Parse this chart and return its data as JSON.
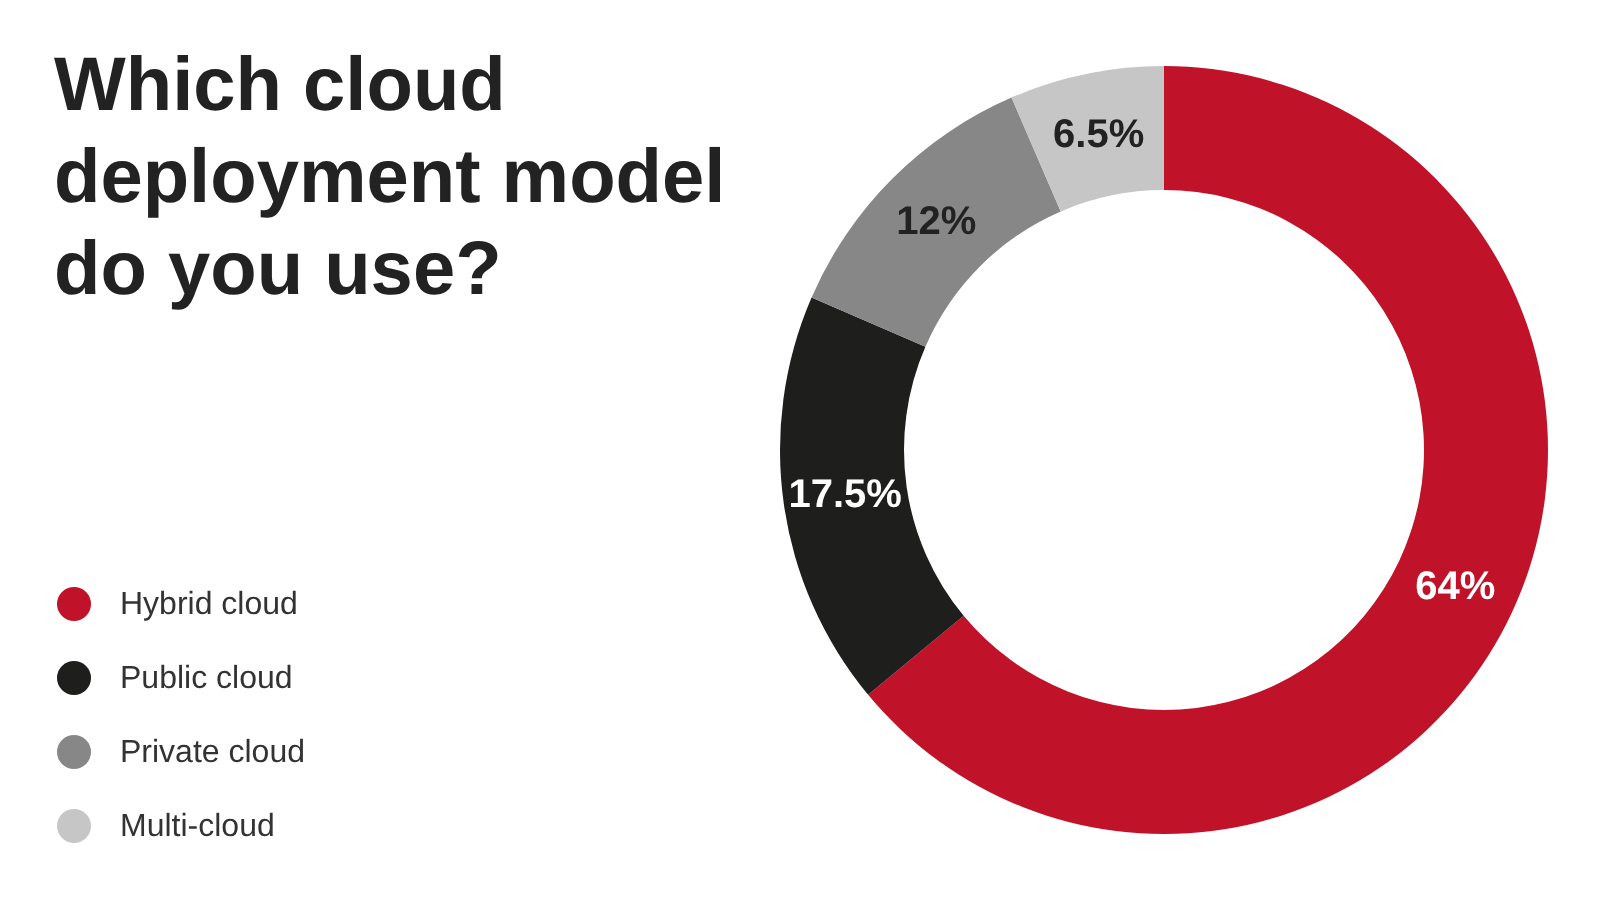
{
  "chart_data": {
    "type": "donut",
    "title": "Which cloud deployment model do you use?",
    "categories": [
      "Hybrid cloud",
      "Public cloud",
      "Private cloud",
      "Multi-cloud"
    ],
    "values": [
      64,
      17.5,
      12,
      6.5
    ],
    "colors": [
      "#c01228",
      "#1e1e1c",
      "#878787",
      "#c6c6c6"
    ],
    "value_labels": [
      "64%",
      "17.5%",
      "12%",
      "6.5%"
    ],
    "legend": "bottom left"
  }
}
